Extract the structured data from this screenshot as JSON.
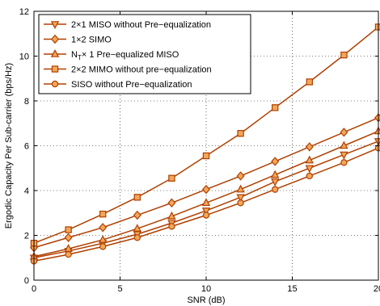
{
  "chart_data": {
    "type": "line",
    "title": "",
    "xlabel": "SNR (dB)",
    "ylabel": "Ergodic Capacity Per Sub-carrier (bps/Hz)",
    "xlim": [
      0,
      20
    ],
    "ylim": [
      0,
      12
    ],
    "xticks": [
      0,
      5,
      10,
      15,
      20
    ],
    "yticks": [
      0,
      2,
      4,
      6,
      8,
      10,
      12
    ],
    "grid": true,
    "legend_position": "top-left",
    "line_color": "#b04000",
    "marker_face_color": "#f2a65a",
    "x": [
      0,
      2,
      4,
      6,
      8,
      10,
      12,
      14,
      16,
      18,
      20
    ],
    "series": [
      {
        "name": "2×1 MISO without Pre−equalization",
        "marker": "triangle-down",
        "values": [
          1.0,
          1.3,
          1.65,
          2.05,
          2.55,
          3.1,
          3.7,
          4.4,
          5.0,
          5.6,
          6.2
        ]
      },
      {
        "name": "1×2 SIMO",
        "marker": "diamond",
        "values": [
          1.45,
          1.9,
          2.35,
          2.9,
          3.45,
          4.05,
          4.65,
          5.3,
          5.95,
          6.6,
          7.25
        ]
      },
      {
        "name": "N_T× 1 Pre−equalized MISO",
        "label_main": "N",
        "label_sub": "T",
        "label_rest": "× 1 Pre−equalized MISO",
        "marker": "triangle-up",
        "values": [
          1.05,
          1.4,
          1.8,
          2.3,
          2.85,
          3.45,
          4.05,
          4.7,
          5.35,
          6.0,
          6.65
        ]
      },
      {
        "name": "2×2 MIMO without pre−equalization",
        "marker": "square",
        "values": [
          1.65,
          2.25,
          2.95,
          3.7,
          4.55,
          5.55,
          6.55,
          7.7,
          8.85,
          10.05,
          11.3
        ]
      },
      {
        "name": "SISO without Pre−equalization",
        "marker": "circle",
        "values": [
          0.85,
          1.15,
          1.5,
          1.9,
          2.4,
          2.9,
          3.45,
          4.05,
          4.65,
          5.25,
          5.9
        ]
      }
    ]
  }
}
